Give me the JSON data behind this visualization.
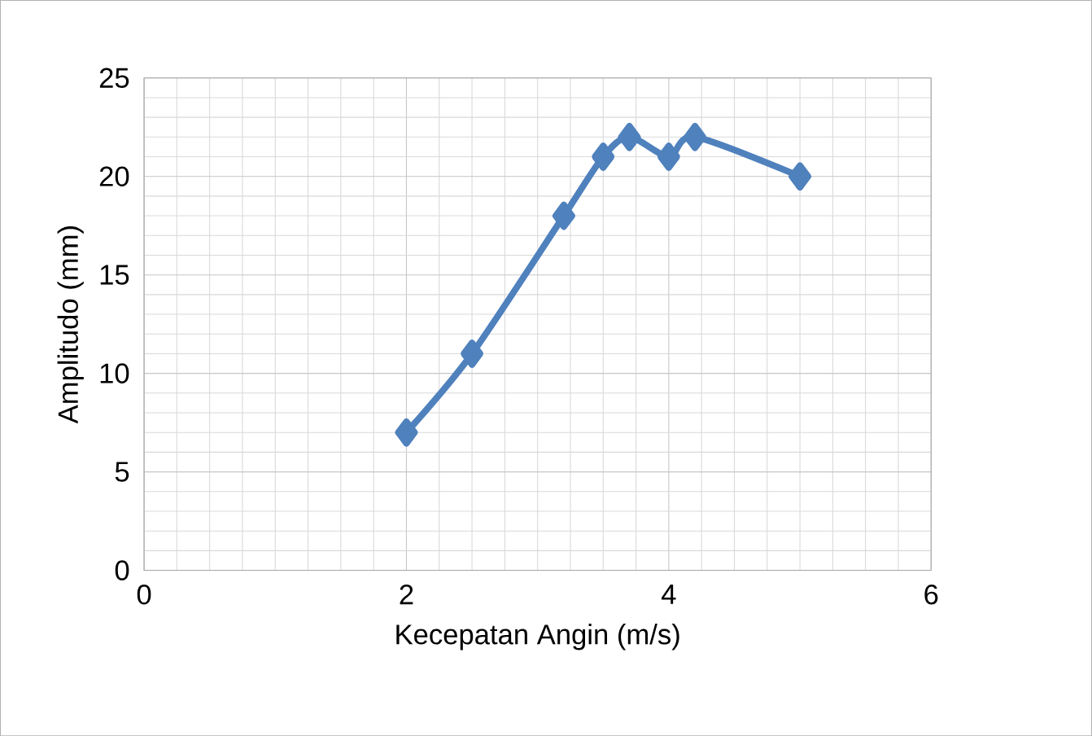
{
  "chart_data": {
    "type": "line",
    "xlabel": "Kecepatan Angin (m/s)",
    "ylabel": "Amplitudo (mm)",
    "x": [
      2,
      2.5,
      3.2,
      3.5,
      3.7,
      4,
      4.2,
      5
    ],
    "series": [
      {
        "color": "#4f81bd",
        "values": [
          7,
          11,
          18,
          21,
          22,
          21,
          22,
          20
        ]
      }
    ],
    "xlim": [
      0,
      6
    ],
    "xticks": [
      0,
      2,
      4,
      6
    ],
    "ylim": [
      0,
      25
    ],
    "yticks": [
      0,
      5,
      10,
      15,
      20,
      25
    ],
    "grid": true,
    "marker": "diamond",
    "line_style": "solid"
  }
}
